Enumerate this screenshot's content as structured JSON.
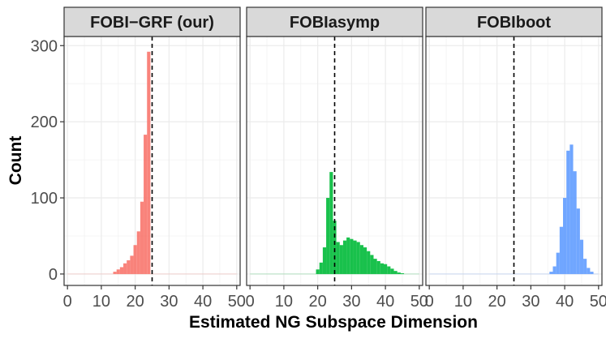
{
  "chart_data": {
    "type": "bar",
    "xlabel": "Estimated NG Subspace Dimension",
    "ylabel": "Count",
    "xlim": [
      -1,
      51
    ],
    "ylim": [
      -15,
      312
    ],
    "x_ticks": [
      0,
      10,
      20,
      30,
      40,
      50
    ],
    "y_ticks": [
      0,
      100,
      200,
      300
    ],
    "grid": true,
    "legend": "none",
    "reference_line": {
      "x": 25,
      "style": "dashed",
      "color": "#000000"
    },
    "panels": [
      {
        "title": "FOBI−GRF (our)",
        "color": "#F8766D",
        "bins": [
          {
            "x": 14,
            "count": 3
          },
          {
            "x": 15,
            "count": 6
          },
          {
            "x": 16,
            "count": 9
          },
          {
            "x": 17,
            "count": 14
          },
          {
            "x": 18,
            "count": 18
          },
          {
            "x": 19,
            "count": 24
          },
          {
            "x": 20,
            "count": 38
          },
          {
            "x": 21,
            "count": 56
          },
          {
            "x": 22,
            "count": 95
          },
          {
            "x": 23,
            "count": 183
          },
          {
            "x": 24,
            "count": 292
          }
        ]
      },
      {
        "title": "FOBIasymp",
        "color": "#00BA38",
        "bins": [
          {
            "x": 20,
            "count": 6
          },
          {
            "x": 21,
            "count": 15
          },
          {
            "x": 22,
            "count": 35
          },
          {
            "x": 23,
            "count": 100
          },
          {
            "x": 24,
            "count": 134
          },
          {
            "x": 25,
            "count": 70
          },
          {
            "x": 26,
            "count": 42
          },
          {
            "x": 27,
            "count": 38
          },
          {
            "x": 28,
            "count": 44
          },
          {
            "x": 29,
            "count": 48
          },
          {
            "x": 30,
            "count": 46
          },
          {
            "x": 31,
            "count": 44
          },
          {
            "x": 32,
            "count": 42
          },
          {
            "x": 33,
            "count": 38
          },
          {
            "x": 34,
            "count": 35
          },
          {
            "x": 35,
            "count": 30
          },
          {
            "x": 36,
            "count": 25
          },
          {
            "x": 37,
            "count": 20
          },
          {
            "x": 38,
            "count": 17
          },
          {
            "x": 39,
            "count": 14
          },
          {
            "x": 40,
            "count": 13
          },
          {
            "x": 41,
            "count": 10
          },
          {
            "x": 42,
            "count": 7
          },
          {
            "x": 43,
            "count": 4
          },
          {
            "x": 44,
            "count": 2
          },
          {
            "x": 45,
            "count": 1
          }
        ]
      },
      {
        "title": "FOBIboot",
        "color": "#619CFF",
        "bins": [
          {
            "x": 36,
            "count": 3
          },
          {
            "x": 37,
            "count": 10
          },
          {
            "x": 38,
            "count": 28
          },
          {
            "x": 39,
            "count": 62
          },
          {
            "x": 40,
            "count": 100
          },
          {
            "x": 41,
            "count": 162
          },
          {
            "x": 42,
            "count": 170
          },
          {
            "x": 43,
            "count": 135
          },
          {
            "x": 44,
            "count": 86
          },
          {
            "x": 45,
            "count": 45
          },
          {
            "x": 46,
            "count": 20
          },
          {
            "x": 47,
            "count": 8
          },
          {
            "x": 48,
            "count": 3
          }
        ]
      }
    ]
  }
}
